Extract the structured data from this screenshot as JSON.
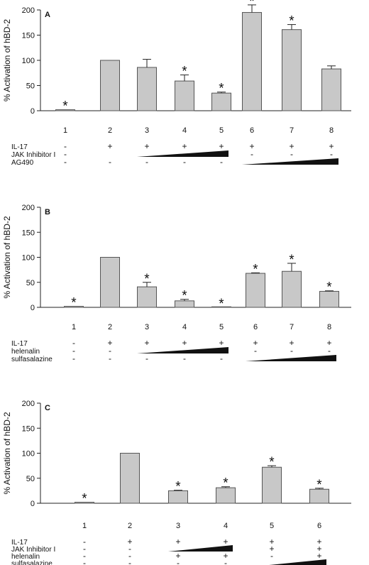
{
  "chart_data": [
    {
      "type": "bar",
      "panel_label": "A",
      "ylabel": "% Activation of hBD-2",
      "ylim": [
        0,
        200
      ],
      "yticks": [
        0,
        50,
        100,
        150,
        200
      ],
      "categories": [
        "1",
        "2",
        "3",
        "4",
        "5",
        "6",
        "7",
        "8"
      ],
      "values": [
        2,
        100,
        86,
        59,
        35,
        195,
        161,
        83
      ],
      "errors": [
        0,
        0,
        16,
        12,
        2,
        15,
        10,
        6
      ],
      "significance": [
        "*",
        "",
        "",
        "*",
        "*",
        "*",
        "*",
        ""
      ],
      "treatments": [
        {
          "label": "IL-17",
          "marks": [
            "-",
            "+",
            "+",
            "+",
            "+",
            "+",
            "+",
            "+"
          ]
        },
        {
          "label": "JAK Inhibitor I",
          "marks": [
            "-",
            "",
            "",
            "",
            "",
            "-",
            "-",
            "-"
          ],
          "ramp": [
            3,
            5
          ]
        },
        {
          "label": "AG490",
          "marks": [
            "-",
            "-",
            "-",
            "-",
            "-",
            "",
            "",
            ""
          ],
          "ramp": [
            6,
            8
          ]
        }
      ]
    },
    {
      "type": "bar",
      "panel_label": "B",
      "ylabel": "% Activation of hBD-2",
      "ylim": [
        0,
        200
      ],
      "yticks": [
        0,
        50,
        100,
        150,
        200
      ],
      "categories": [
        "1",
        "2",
        "3",
        "4",
        "5",
        "6",
        "7",
        "8"
      ],
      "values": [
        2,
        100,
        41,
        13,
        0,
        68,
        72,
        32
      ],
      "errors": [
        0,
        0,
        9,
        3,
        0,
        1,
        16,
        1
      ],
      "significance": [
        "*",
        "",
        "*",
        "*",
        "*",
        "*",
        "*",
        "*"
      ],
      "treatments": [
        {
          "label": "IL-17",
          "marks": [
            "-",
            "+",
            "+",
            "+",
            "+",
            "+",
            "+",
            "+"
          ]
        },
        {
          "label": "helenalin",
          "marks": [
            "-",
            "-",
            "",
            "",
            "",
            "-",
            "-",
            "-"
          ],
          "ramp": [
            3,
            5
          ]
        },
        {
          "label": "sulfasalazine",
          "marks": [
            "-",
            "-",
            "-",
            "-",
            "-",
            "",
            "",
            ""
          ],
          "ramp": [
            6,
            8
          ]
        }
      ]
    },
    {
      "type": "bar",
      "panel_label": "C",
      "ylabel": "% Activation of hBD-2",
      "ylim": [
        0,
        200
      ],
      "yticks": [
        0,
        50,
        100,
        150,
        200
      ],
      "categories": [
        "1",
        "2",
        "3",
        "4",
        "5",
        "6"
      ],
      "values": [
        2,
        100,
        25,
        31,
        72,
        28
      ],
      "errors": [
        0,
        0,
        1,
        2,
        3,
        2
      ],
      "significance": [
        "*",
        "",
        "*",
        "*",
        "*",
        "*"
      ],
      "treatments": [
        {
          "label": "IL-17",
          "marks": [
            "-",
            "+",
            "+",
            "+",
            "+",
            "+"
          ]
        },
        {
          "label": "JAK Inhibitor I",
          "marks": [
            "-",
            "-",
            "",
            "",
            "+",
            "+"
          ],
          "ramp": [
            3,
            4
          ]
        },
        {
          "label": "helenalin",
          "marks": [
            "-",
            "-",
            "+",
            "+",
            "-",
            "+"
          ]
        },
        {
          "label": "sulfasalazine",
          "marks": [
            "-",
            "-",
            "-",
            "-",
            "",
            ""
          ],
          "ramp": [
            5,
            6
          ]
        }
      ]
    }
  ]
}
